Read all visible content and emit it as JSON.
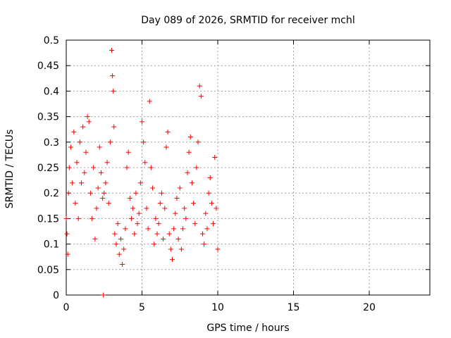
{
  "chart_data": {
    "type": "scatter",
    "title": "Day 089 of 2026, SRMTID for receiver mchl",
    "xlabel": "GPS time / hours",
    "ylabel": "SRMTID / TECUs",
    "xlim": [
      0,
      24
    ],
    "ylim": [
      0,
      0.5
    ],
    "x_ticks": [
      "0",
      "5",
      "10",
      "15",
      "20"
    ],
    "y_ticks": [
      "0",
      "0.05",
      "0.1",
      "0.15",
      "0.2",
      "0.25",
      "0.3",
      "0.35",
      "0.4",
      "0.45",
      "0.5"
    ],
    "grid": true,
    "legend": "none",
    "marker": "plus",
    "color": "#ff0000",
    "series": [
      {
        "x": [
          0.0,
          0.05,
          0.1,
          0.15,
          0.2,
          0.3,
          0.4,
          0.5,
          0.6,
          0.7,
          0.8,
          0.9,
          1.0,
          1.1,
          1.2,
          1.3,
          1.4,
          1.5,
          1.6,
          1.7,
          1.8,
          1.9,
          2.0,
          2.1,
          2.2,
          2.3,
          2.4,
          2.5,
          2.6,
          2.7,
          2.8,
          2.9,
          3.0,
          3.05,
          3.1,
          3.15,
          3.2,
          3.3,
          3.4,
          3.5,
          3.6,
          3.7,
          3.8,
          3.9,
          4.0,
          4.1,
          4.2,
          4.3,
          4.4,
          4.5,
          4.6,
          4.7,
          4.8,
          4.9,
          5.0,
          5.1,
          5.2,
          5.3,
          5.4,
          5.5,
          5.6,
          5.7,
          5.8,
          5.9,
          6.0,
          6.1,
          6.2,
          6.3,
          6.4,
          6.5,
          6.6,
          6.7,
          6.8,
          6.9,
          7.0,
          7.1,
          7.2,
          7.3,
          7.4,
          7.5,
          7.6,
          7.7,
          7.8,
          7.9,
          8.0,
          8.1,
          8.2,
          8.3,
          8.4,
          8.5,
          8.6,
          8.7,
          8.8,
          8.9,
          9.0,
          9.1,
          9.2,
          9.3,
          9.4,
          9.5,
          9.6,
          9.7,
          9.8,
          9.9,
          10.0
        ],
        "y": [
          0.15,
          0.12,
          0.08,
          0.2,
          0.25,
          0.29,
          0.22,
          0.32,
          0.18,
          0.26,
          0.15,
          0.3,
          0.22,
          0.33,
          0.24,
          0.28,
          0.35,
          0.34,
          0.2,
          0.15,
          0.25,
          0.11,
          0.17,
          0.21,
          0.29,
          0.24,
          0.19,
          0.2,
          0.22,
          0.26,
          0.18,
          0.3,
          0.48,
          0.43,
          0.4,
          0.33,
          0.12,
          0.1,
          0.14,
          0.08,
          0.11,
          0.06,
          0.09,
          0.13,
          0.25,
          0.28,
          0.19,
          0.15,
          0.17,
          0.12,
          0.2,
          0.14,
          0.16,
          0.22,
          0.34,
          0.3,
          0.26,
          0.17,
          0.13,
          0.38,
          0.25,
          0.21,
          0.1,
          0.15,
          0.12,
          0.14,
          0.18,
          0.2,
          0.11,
          0.17,
          0.29,
          0.32,
          0.12,
          0.09,
          0.07,
          0.13,
          0.16,
          0.19,
          0.11,
          0.21,
          0.09,
          0.13,
          0.17,
          0.15,
          0.24,
          0.28,
          0.31,
          0.22,
          0.18,
          0.14,
          0.25,
          0.3,
          0.41,
          0.39,
          0.12,
          0.1,
          0.16,
          0.13,
          0.2,
          0.23,
          0.18,
          0.14,
          0.27,
          0.17,
          0.09
        ]
      }
    ],
    "outlier": {
      "x": 2.45,
      "y": 0.0
    }
  }
}
